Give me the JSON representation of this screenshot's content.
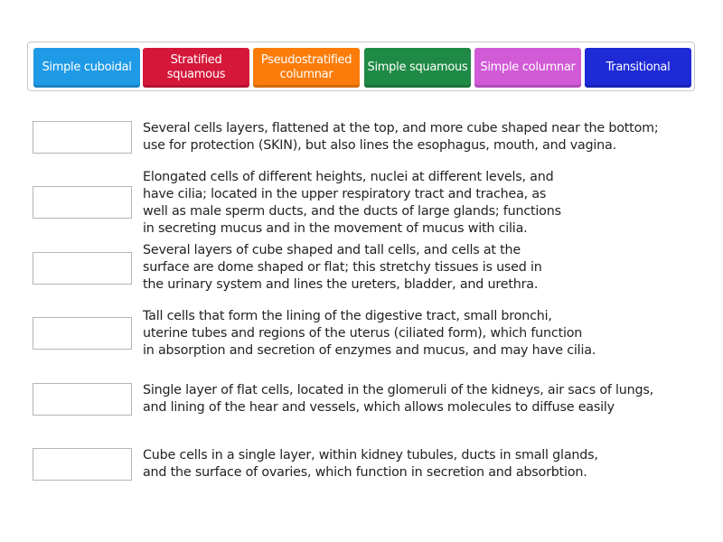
{
  "tiles": [
    {
      "label": "Simple cuboidal",
      "color": "#1e9ae6"
    },
    {
      "label": "Stratified squamous",
      "color": "#d5173a"
    },
    {
      "label": "Pseudostratified columnar",
      "color": "#fb7c0a"
    },
    {
      "label": "Simple squamous",
      "color": "#1f8a45"
    },
    {
      "label": "Simple columnar",
      "color": "#d15ad7"
    },
    {
      "label": "Transitional",
      "color": "#1e2ad6"
    }
  ],
  "rows": [
    {
      "text": "Several cells layers, flattened at the top, and more cube shaped near the bottom;\nuse for protection (SKIN), but also lines the esophagus, mouth, and vagina."
    },
    {
      "text": "Elongated cells of different heights, nuclei at different levels, and\nhave cilia; located in the upper respiratory tract and trachea, as\nwell as male sperm ducts, and the ducts of large glands; functions\nin secreting mucus and in the movement of mucus with cilia."
    },
    {
      "text": "Several layers of cube shaped and tall cells, and cells at the\nsurface are dome shaped or flat; this stretchy tissues is used in\nthe urinary system and lines the ureters, bladder, and urethra."
    },
    {
      "text": "Tall cells that form the lining of the digestive tract, small bronchi,\nuterine tubes and regions of the uterus (ciliated form), which function\nin absorption and secretion of enzymes and mucus, and may have cilia."
    },
    {
      "text": "Single layer of flat cells, located in the glomeruli of the kidneys, air sacs of lungs,\nand lining of the hear and vessels, which allows molecules to diffuse easily"
    },
    {
      "text": "Cube cells in a single layer, within kidney tubules, ducts in small glands,\nand the surface of ovaries, which function in secretion and absorbtion."
    }
  ]
}
